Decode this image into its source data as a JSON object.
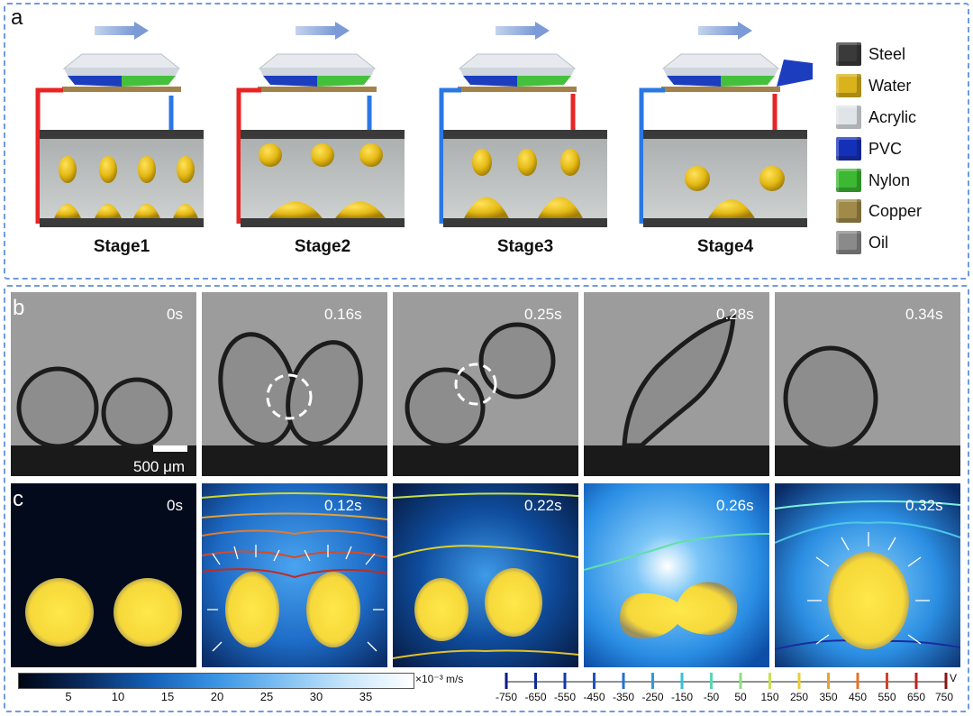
{
  "panel_a": {
    "label": "a",
    "stages": [
      "Stage1",
      "Stage2",
      "Stage3",
      "Stage4"
    ],
    "legend": [
      {
        "name": "Steel",
        "color": "#3a3a3a"
      },
      {
        "name": "Water",
        "color": "#d9b21c"
      },
      {
        "name": "Acrylic",
        "color": "#dfe4e8"
      },
      {
        "name": "PVC",
        "color": "#1530b8"
      },
      {
        "name": "Nylon",
        "color": "#3cb832"
      },
      {
        "name": "Copper",
        "color": "#a08a4a"
      },
      {
        "name": "Oil",
        "color": "#8a8a8a"
      }
    ]
  },
  "panel_b": {
    "label": "b",
    "times": [
      "0s",
      "0.16s",
      "0.25s",
      "0.28s",
      "0.34s"
    ],
    "scale_bar": "500 μm"
  },
  "panel_c": {
    "label": "c",
    "times": [
      "0s",
      "0.12s",
      "0.22s",
      "0.26s",
      "0.32s"
    ],
    "velocity_colorbar": {
      "ticks": [
        "5",
        "10",
        "15",
        "20",
        "25",
        "30",
        "35"
      ],
      "unit": "×10⁻³ m/s"
    },
    "potential_colorbar": {
      "ticks": [
        "-750",
        "-650",
        "-550",
        "-450",
        "-350",
        "-250",
        "-150",
        "-50",
        "50",
        "150",
        "250",
        "350",
        "450",
        "550",
        "650",
        "750"
      ],
      "unit": "V"
    }
  }
}
